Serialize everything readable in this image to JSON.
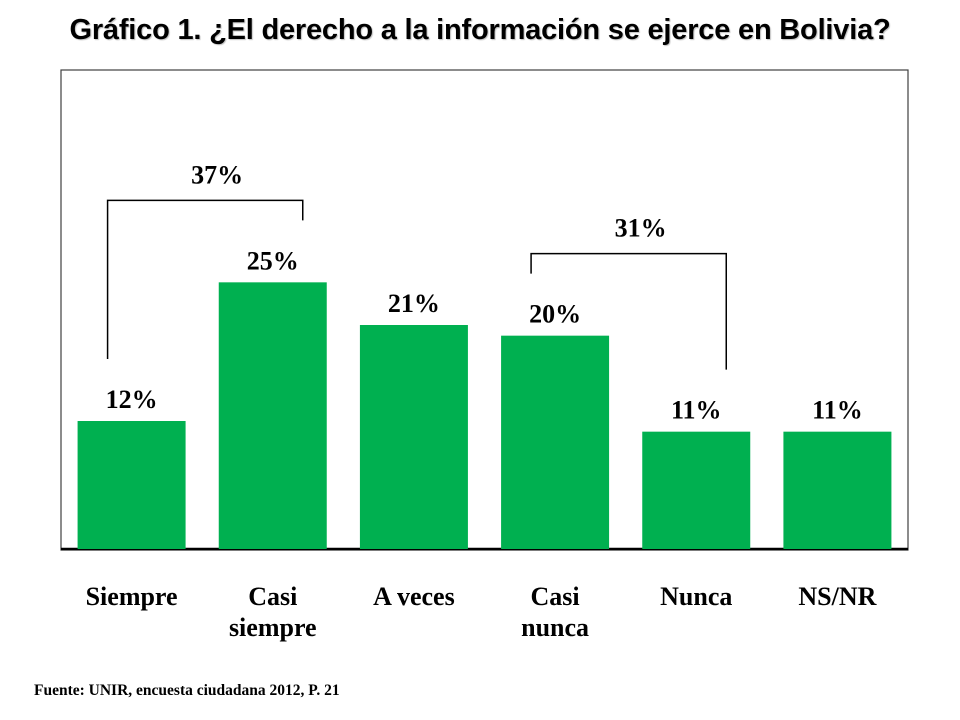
{
  "title": "Gráfico 1. ¿El derecho a la información se ejerce en Bolivia?",
  "source": "Fuente: UNIR, encuesta ciudadana 2012, P. 21",
  "colors": {
    "bar": "#00B050",
    "bracket": "#000000"
  },
  "chart_data": {
    "type": "bar",
    "categories": [
      [
        "Siempre"
      ],
      [
        "Casi",
        "siempre"
      ],
      [
        "A veces"
      ],
      [
        "Casi",
        "nunca"
      ],
      [
        "Nunca"
      ],
      [
        "NS/NR"
      ]
    ],
    "values": [
      12,
      25,
      21,
      20,
      11,
      11
    ],
    "value_labels": [
      "12%",
      "25%",
      "21%",
      "20%",
      "11%",
      "11%"
    ],
    "ylim": [
      0,
      45
    ],
    "grid": false,
    "annotations": [
      {
        "text": "37%",
        "from_category": 0,
        "to_category": 1
      },
      {
        "text": "31%",
        "from_category": 3,
        "to_category": 4
      }
    ]
  }
}
